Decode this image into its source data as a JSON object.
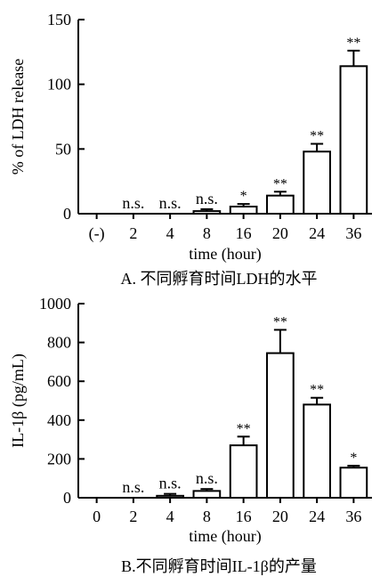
{
  "chart_data": [
    {
      "type": "bar",
      "ylabel": "% of LDH release",
      "xlabel": "time (hour)",
      "caption": "A. 不同孵育时间LDH的水平",
      "categories": [
        "(-)",
        "2",
        "4",
        "8",
        "16",
        "20",
        "24",
        "36"
      ],
      "values": [
        0,
        0,
        0,
        2,
        5.5,
        14,
        48,
        114
      ],
      "errors": [
        0,
        0,
        0,
        1.5,
        2,
        3,
        6,
        12
      ],
      "annotations": [
        "",
        "n.s.",
        "n.s.",
        "n.s.",
        "*",
        "**",
        "**",
        "**"
      ],
      "ylim": [
        0,
        150
      ],
      "yticks": [
        "0",
        "50",
        "100",
        "150"
      ]
    },
    {
      "type": "bar",
      "ylabel": "IL-1β (pg/mL)",
      "xlabel": "time (hour)",
      "caption": "B.不同孵育时间IL-1β的产量",
      "categories": [
        "0",
        "2",
        "4",
        "8",
        "16",
        "20",
        "24",
        "36"
      ],
      "values": [
        0,
        0,
        10,
        35,
        270,
        745,
        480,
        155
      ],
      "errors": [
        0,
        0,
        10,
        10,
        45,
        120,
        35,
        10
      ],
      "annotations": [
        "",
        "n.s.",
        "n.s.",
        "n.s.",
        "**",
        "**",
        "**",
        "*"
      ],
      "ylim": [
        0,
        1000
      ],
      "yticks": [
        "0",
        "200",
        "400",
        "600",
        "800",
        "1000"
      ]
    }
  ]
}
